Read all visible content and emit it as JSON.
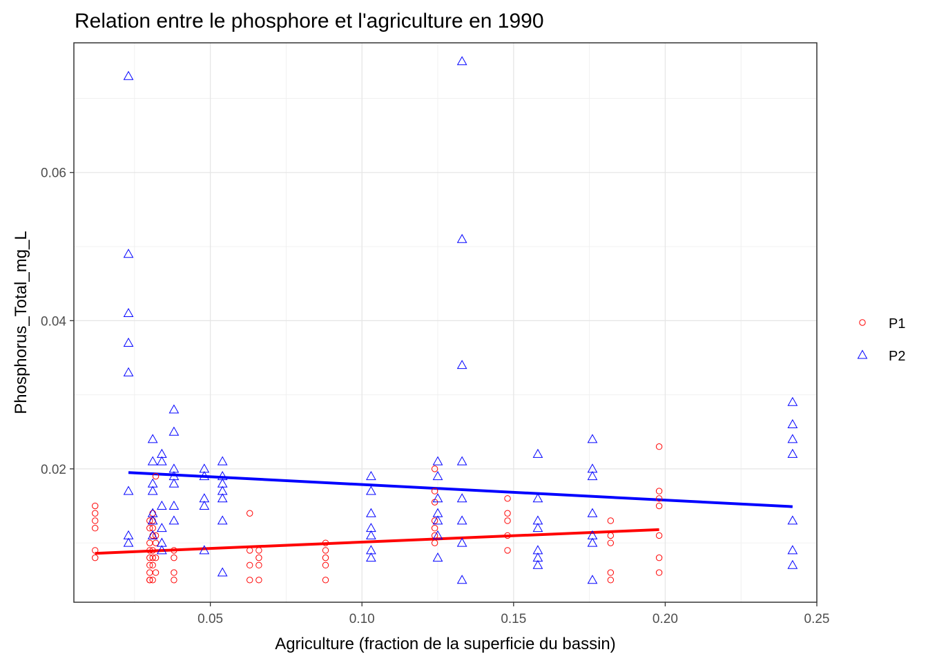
{
  "chart_data": {
    "type": "scatter",
    "title": "Relation entre le phosphore et l'agriculture en 1990",
    "xlabel": "Agriculture (fraction de la superficie du bassin)",
    "ylabel": "Phosphorus_Total_mg_L",
    "xlim": [
      0.005,
      0.25
    ],
    "ylim": [
      0.002,
      0.0775
    ],
    "x_ticks": [
      0.05,
      0.1,
      0.15,
      0.2,
      0.25
    ],
    "x_tick_labels": [
      "0.05",
      "0.10",
      "0.15",
      "0.20",
      "0.25"
    ],
    "y_ticks": [
      0.02,
      0.04,
      0.06
    ],
    "y_tick_labels": [
      "0.02",
      "0.04",
      "0.06"
    ],
    "grid": true,
    "legend_position": "right",
    "series": [
      {
        "name": "P1",
        "color": "#ff0000",
        "marker": "circle",
        "points": [
          [
            0.012,
            0.015
          ],
          [
            0.012,
            0.014
          ],
          [
            0.012,
            0.013
          ],
          [
            0.012,
            0.012
          ],
          [
            0.012,
            0.009
          ],
          [
            0.012,
            0.008
          ],
          [
            0.03,
            0.005
          ],
          [
            0.03,
            0.005
          ],
          [
            0.03,
            0.006
          ],
          [
            0.03,
            0.007
          ],
          [
            0.03,
            0.008
          ],
          [
            0.03,
            0.009
          ],
          [
            0.03,
            0.01
          ],
          [
            0.03,
            0.012
          ],
          [
            0.03,
            0.013
          ],
          [
            0.031,
            0.005
          ],
          [
            0.031,
            0.007
          ],
          [
            0.031,
            0.008
          ],
          [
            0.031,
            0.009
          ],
          [
            0.031,
            0.011
          ],
          [
            0.031,
            0.012
          ],
          [
            0.031,
            0.013
          ],
          [
            0.031,
            0.014
          ],
          [
            0.032,
            0.006
          ],
          [
            0.032,
            0.008
          ],
          [
            0.032,
            0.01
          ],
          [
            0.032,
            0.011
          ],
          [
            0.032,
            0.019
          ],
          [
            0.038,
            0.005
          ],
          [
            0.038,
            0.006
          ],
          [
            0.038,
            0.008
          ],
          [
            0.038,
            0.009
          ],
          [
            0.063,
            0.005
          ],
          [
            0.063,
            0.007
          ],
          [
            0.063,
            0.009
          ],
          [
            0.063,
            0.014
          ],
          [
            0.066,
            0.005
          ],
          [
            0.066,
            0.007
          ],
          [
            0.066,
            0.008
          ],
          [
            0.066,
            0.009
          ],
          [
            0.088,
            0.005
          ],
          [
            0.088,
            0.007
          ],
          [
            0.088,
            0.008
          ],
          [
            0.088,
            0.009
          ],
          [
            0.088,
            0.01
          ],
          [
            0.124,
            0.01
          ],
          [
            0.124,
            0.011
          ],
          [
            0.124,
            0.012
          ],
          [
            0.124,
            0.013
          ],
          [
            0.124,
            0.0155
          ],
          [
            0.124,
            0.017
          ],
          [
            0.124,
            0.02
          ],
          [
            0.148,
            0.009
          ],
          [
            0.148,
            0.011
          ],
          [
            0.148,
            0.013
          ],
          [
            0.148,
            0.014
          ],
          [
            0.148,
            0.016
          ],
          [
            0.182,
            0.005
          ],
          [
            0.182,
            0.006
          ],
          [
            0.182,
            0.01
          ],
          [
            0.182,
            0.011
          ],
          [
            0.182,
            0.013
          ],
          [
            0.198,
            0.006
          ],
          [
            0.198,
            0.008
          ],
          [
            0.198,
            0.011
          ],
          [
            0.198,
            0.015
          ],
          [
            0.198,
            0.016
          ],
          [
            0.198,
            0.017
          ],
          [
            0.198,
            0.023
          ]
        ],
        "trend": [
          [
            0.012,
            0.0086
          ],
          [
            0.198,
            0.0118
          ]
        ]
      },
      {
        "name": "P2",
        "color": "#0000ff",
        "marker": "triangle",
        "points": [
          [
            0.023,
            0.073
          ],
          [
            0.023,
            0.049
          ],
          [
            0.023,
            0.041
          ],
          [
            0.023,
            0.037
          ],
          [
            0.023,
            0.033
          ],
          [
            0.023,
            0.017
          ],
          [
            0.023,
            0.011
          ],
          [
            0.023,
            0.01
          ],
          [
            0.031,
            0.024
          ],
          [
            0.031,
            0.021
          ],
          [
            0.031,
            0.018
          ],
          [
            0.031,
            0.017
          ],
          [
            0.031,
            0.014
          ],
          [
            0.031,
            0.013
          ],
          [
            0.031,
            0.011
          ],
          [
            0.034,
            0.022
          ],
          [
            0.034,
            0.021
          ],
          [
            0.034,
            0.015
          ],
          [
            0.034,
            0.012
          ],
          [
            0.034,
            0.01
          ],
          [
            0.034,
            0.009
          ],
          [
            0.038,
            0.028
          ],
          [
            0.038,
            0.025
          ],
          [
            0.038,
            0.02
          ],
          [
            0.038,
            0.019
          ],
          [
            0.038,
            0.018
          ],
          [
            0.038,
            0.015
          ],
          [
            0.038,
            0.013
          ],
          [
            0.048,
            0.02
          ],
          [
            0.048,
            0.019
          ],
          [
            0.048,
            0.016
          ],
          [
            0.048,
            0.015
          ],
          [
            0.048,
            0.009
          ],
          [
            0.054,
            0.021
          ],
          [
            0.054,
            0.019
          ],
          [
            0.054,
            0.018
          ],
          [
            0.054,
            0.017
          ],
          [
            0.054,
            0.016
          ],
          [
            0.054,
            0.013
          ],
          [
            0.054,
            0.006
          ],
          [
            0.103,
            0.019
          ],
          [
            0.103,
            0.017
          ],
          [
            0.103,
            0.014
          ],
          [
            0.103,
            0.012
          ],
          [
            0.103,
            0.011
          ],
          [
            0.103,
            0.009
          ],
          [
            0.103,
            0.008
          ],
          [
            0.125,
            0.021
          ],
          [
            0.125,
            0.019
          ],
          [
            0.125,
            0.016
          ],
          [
            0.125,
            0.014
          ],
          [
            0.125,
            0.013
          ],
          [
            0.125,
            0.011
          ],
          [
            0.125,
            0.008
          ],
          [
            0.133,
            0.075
          ],
          [
            0.133,
            0.051
          ],
          [
            0.133,
            0.034
          ],
          [
            0.133,
            0.021
          ],
          [
            0.133,
            0.016
          ],
          [
            0.133,
            0.013
          ],
          [
            0.133,
            0.01
          ],
          [
            0.133,
            0.005
          ],
          [
            0.158,
            0.022
          ],
          [
            0.158,
            0.016
          ],
          [
            0.158,
            0.013
          ],
          [
            0.158,
            0.012
          ],
          [
            0.158,
            0.009
          ],
          [
            0.158,
            0.008
          ],
          [
            0.158,
            0.007
          ],
          [
            0.176,
            0.024
          ],
          [
            0.176,
            0.02
          ],
          [
            0.176,
            0.019
          ],
          [
            0.176,
            0.014
          ],
          [
            0.176,
            0.011
          ],
          [
            0.176,
            0.01
          ],
          [
            0.176,
            0.005
          ],
          [
            0.242,
            0.029
          ],
          [
            0.242,
            0.026
          ],
          [
            0.242,
            0.024
          ],
          [
            0.242,
            0.022
          ],
          [
            0.242,
            0.013
          ],
          [
            0.242,
            0.009
          ],
          [
            0.242,
            0.007
          ]
        ],
        "trend": [
          [
            0.023,
            0.0195
          ],
          [
            0.242,
            0.0149
          ]
        ]
      }
    ]
  }
}
